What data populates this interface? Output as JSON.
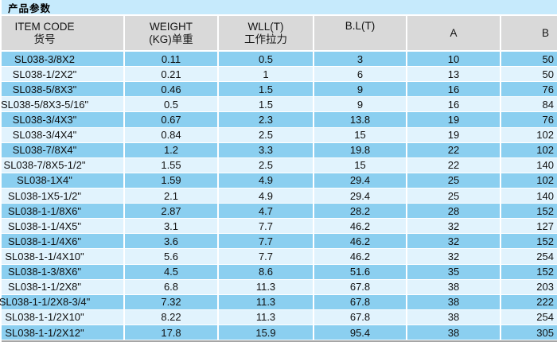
{
  "title": "产品参数",
  "table": {
    "columns": [
      {
        "key": "item-code",
        "line1": "ITEM CODE",
        "line2": "货号"
      },
      {
        "key": "weight",
        "line1": "WEIGHT",
        "line2": "(KG)单重"
      },
      {
        "key": "wll",
        "line1": "WLL(T)",
        "line2": "工作拉力"
      },
      {
        "key": "bl",
        "line1": "B.L(T)",
        "line2": ""
      },
      {
        "key": "a",
        "line1": "A",
        "line2": ""
      },
      {
        "key": "b",
        "line1": "B",
        "line2": ""
      }
    ],
    "rows": [
      [
        "SL038-3/8X2",
        "0.11",
        "0.5",
        "3",
        "10",
        "50"
      ],
      [
        "SL038-1/2X2\"",
        "0.21",
        "1",
        "6",
        "13",
        "50"
      ],
      [
        "SL038-5/8X3\"",
        "0.46",
        "1.5",
        "9",
        "16",
        "76"
      ],
      [
        "SL038-5/8X3-5/16\"",
        "0.5",
        "1.5",
        "9",
        "16",
        "84"
      ],
      [
        "SL038-3/4X3\"",
        "0.67",
        "2.3",
        "13.8",
        "19",
        "76"
      ],
      [
        "SL038-3/4X4\"",
        "0.84",
        "2.5",
        "15",
        "19",
        "102"
      ],
      [
        "SL038-7/8X4\"",
        "1.2",
        "3.3",
        "19.8",
        "22",
        "102"
      ],
      [
        "SL038-7/8X5-1/2\"",
        "1.55",
        "2.5",
        "15",
        "22",
        "140"
      ],
      [
        "SL038-1X4\"",
        "1.59",
        "4.9",
        "29.4",
        "25",
        "102"
      ],
      [
        "SL038-1X5-1/2\"",
        "2.1",
        "4.9",
        "29.4",
        "25",
        "140"
      ],
      [
        "SL038-1-1/8X6\"",
        "2.87",
        "4.7",
        "28.2",
        "28",
        "152"
      ],
      [
        "SL038-1-1/4X5\"",
        "3.1",
        "7.7",
        "46.2",
        "32",
        "127"
      ],
      [
        "SL038-1-1/4X6\"",
        "3.6",
        "7.7",
        "46.2",
        "32",
        "152"
      ],
      [
        "SL038-1-1/4X10\"",
        "5.6",
        "7.7",
        "46.2",
        "32",
        "254"
      ],
      [
        "SL038-1-3/8X6\"",
        "4.5",
        "8.6",
        "51.6",
        "35",
        "152"
      ],
      [
        "SL038-1-1/2X8\"",
        "6.8",
        "11.3",
        "67.8",
        "38",
        "203"
      ],
      [
        "SL038-1-1/2X8-3/4\"",
        "7.32",
        "11.3",
        "67.8",
        "38",
        "222"
      ],
      [
        "SL038-1-1/2X10\"",
        "8.22",
        "11.3",
        "67.8",
        "38",
        "254"
      ],
      [
        "SL038-1-1/2X12\"",
        "17.8",
        "15.9",
        "95.4",
        "38",
        "305"
      ]
    ]
  },
  "colors": {
    "title_bar_bg": "#c6eafc",
    "header_bg": "#d9d9d9",
    "row_dark": "#8bcff0",
    "row_light": "#e1f3fd",
    "separator": "#ffffff",
    "bottom_strip": "#a6a6a6",
    "text": "#111111"
  }
}
